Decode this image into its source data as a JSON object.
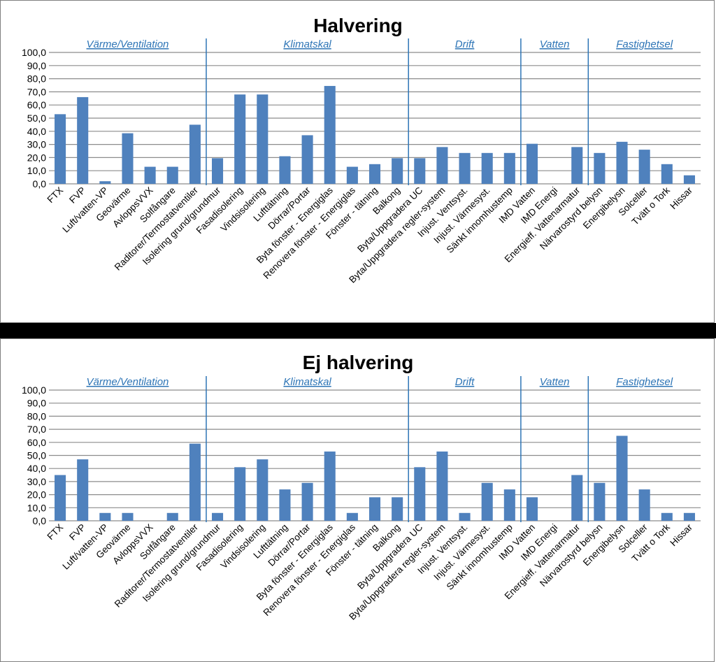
{
  "chart_data": [
    {
      "type": "bar",
      "title": "Halvering",
      "xlabel": "",
      "ylabel": "",
      "ylim": [
        0,
        100
      ],
      "yticks": [
        "0,0",
        "10,0",
        "20,0",
        "30,0",
        "40,0",
        "50,0",
        "60,0",
        "70,0",
        "80,0",
        "90,0",
        "100,0"
      ],
      "grid": true,
      "color": "#4f81bd",
      "groups": [
        {
          "name": "Värme/Ventilation",
          "start": 0,
          "end": 7
        },
        {
          "name": "Klimatskal",
          "start": 7,
          "end": 16
        },
        {
          "name": "Drift",
          "start": 16,
          "end": 21
        },
        {
          "name": "Vatten",
          "start": 21,
          "end": 24
        },
        {
          "name": "Fastighetsel",
          "start": 24,
          "end": 29
        }
      ],
      "categories": [
        "FTX",
        "FVP",
        "Luft/vatten-VP",
        "Geovärme",
        "AvloppsVVX",
        "Solfångare",
        "Raditorer/Termostatventiler",
        "Isolering grund/grundmur",
        "Fasadisolering",
        "Vindsisolering",
        "Lufttätning",
        "Dörrar/Portar",
        "Byta fönster - Energiglas",
        "Renovera fönster - Energiglas",
        "Fönster - tätning",
        "Balkong",
        "Byta/Uppgradera UC",
        "Byta/Uppgradera regler-system",
        "Injust. Ventsyst.",
        "Injust. Värmesyst.",
        "Sänkt innomhustemp",
        "IMD Vatten",
        "IMD Energi",
        "Energieff. Vattenarmatur",
        "Närvarostyrd belysn",
        "Energibelysn",
        "Solceller",
        "Tvätt o Tork",
        "Hissar"
      ],
      "values": [
        53,
        66,
        2,
        38.5,
        13,
        13,
        45,
        19.5,
        68,
        68,
        21,
        37,
        74.5,
        13,
        15,
        19.5,
        19.5,
        28,
        23.5,
        23.5,
        23.5,
        30.5,
        0,
        28,
        23.5,
        32,
        26,
        15,
        6.5
      ]
    },
    {
      "type": "bar",
      "title": "Ej halvering",
      "xlabel": "",
      "ylabel": "",
      "ylim": [
        0,
        100
      ],
      "yticks": [
        "0,0",
        "10,0",
        "20,0",
        "30,0",
        "40,0",
        "50,0",
        "60,0",
        "70,0",
        "80,0",
        "90,0",
        "100,0"
      ],
      "grid": true,
      "color": "#4f81bd",
      "groups": [
        {
          "name": "Värme/Ventilation",
          "start": 0,
          "end": 7
        },
        {
          "name": "Klimatskal",
          "start": 7,
          "end": 16
        },
        {
          "name": "Drift",
          "start": 16,
          "end": 21
        },
        {
          "name": "Vatten",
          "start": 21,
          "end": 24
        },
        {
          "name": "Fastighetsel",
          "start": 24,
          "end": 29
        }
      ],
      "categories": [
        "FTX",
        "FVP",
        "Luft/vatten-VP",
        "Geovärme",
        "AvloppsVVX",
        "Solfångare",
        "Raditorer/Termostatventiler",
        "Isolering grund/grundmur",
        "Fasadisolering",
        "Vindsisolering",
        "Lufttätning",
        "Dörrar/Portar",
        "Byta fönster - Energiglas",
        "Renovera fönster - Energiglas",
        "Fönster - tätning",
        "Balkong",
        "Byta/Uppgradera UC",
        "Byta/Uppgradera regler-system",
        "Injust. Ventsyst.",
        "Injust. Värmesyst.",
        "Sänkt innomhustemp",
        "IMD Vatten",
        "IMD Energi",
        "Energieff. Vattenarmatur",
        "Närvarostyrd belysn",
        "Energibelysn",
        "Solceller",
        "Tvätt o Tork",
        "Hissar"
      ],
      "values": [
        35,
        47,
        6,
        6,
        0,
        6,
        59,
        6,
        41,
        47,
        24,
        29,
        53,
        6,
        18,
        18,
        41,
        53,
        6,
        29,
        24,
        18,
        0,
        35,
        29,
        65,
        24,
        6,
        6
      ]
    }
  ]
}
